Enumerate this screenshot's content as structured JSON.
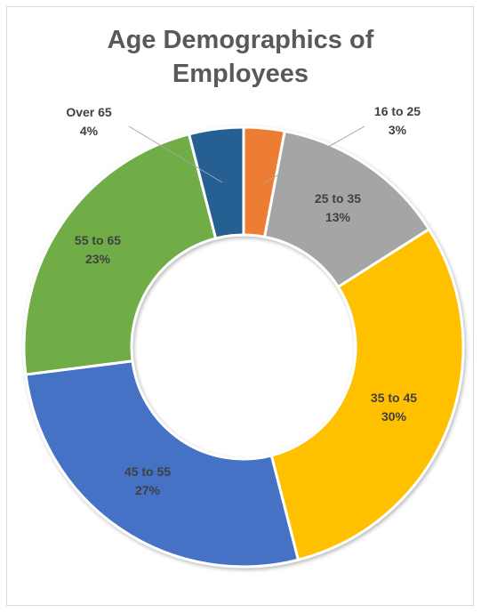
{
  "chart_data": {
    "type": "pie",
    "variant": "doughnut",
    "title_lines": [
      "Age Demographics of",
      "Employees"
    ],
    "slices": [
      {
        "label": "16 to 25",
        "value": 3,
        "pct_label": "3%",
        "color": "#ED7D31"
      },
      {
        "label": "25 to 35",
        "value": 13,
        "pct_label": "13%",
        "color": "#A5A5A5"
      },
      {
        "label": "35 to 45",
        "value": 30,
        "pct_label": "30%",
        "color": "#FFC000"
      },
      {
        "label": "45 to 55",
        "value": 27,
        "pct_label": "27%",
        "color": "#4472C4"
      },
      {
        "label": "55 to 65",
        "value": 23,
        "pct_label": "23%",
        "color": "#70AD47"
      },
      {
        "label": "Over 65",
        "value": 4,
        "pct_label": "4%",
        "color": "#255E91"
      }
    ],
    "start": "top, clockwise",
    "legend": "none"
  }
}
